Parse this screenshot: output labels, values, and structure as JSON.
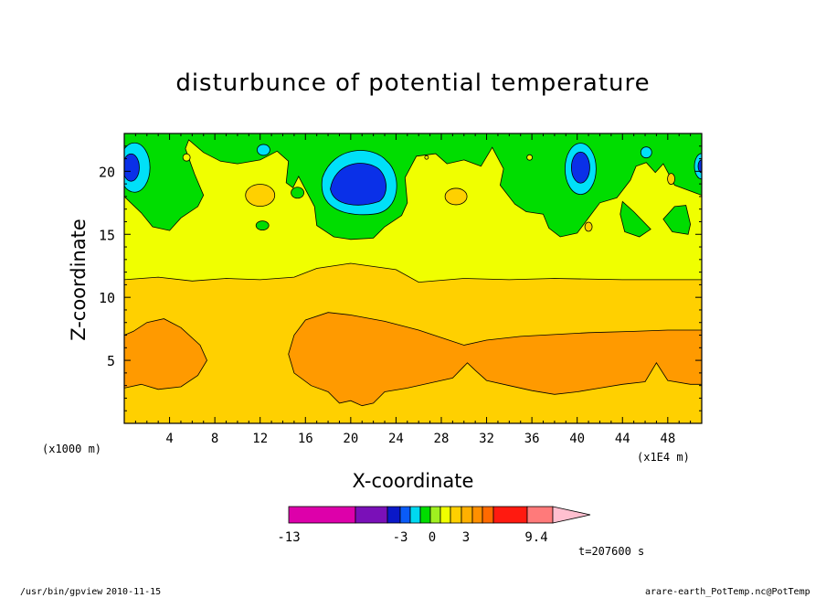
{
  "title": "disturbunce of potential temperature",
  "time_label": "t=207600 s",
  "footer": {
    "left_path": "/usr/bin/gpview",
    "left_date": "2010-11-15",
    "right_source": "arare-earth_PotTemp.nc@PotTemp"
  },
  "chart_data": {
    "type": "heatmap",
    "title": "disturbunce of potential temperature",
    "xlabel": "X-coordinate",
    "ylabel": "Z-coordinate",
    "x_units_left": "(x1000 m)",
    "x_units_right": "(x1E4 m)",
    "xlim": [
      0,
      51
    ],
    "ylim": [
      0,
      23
    ],
    "x_ticks": [
      4,
      8,
      12,
      16,
      20,
      24,
      28,
      32,
      36,
      40,
      44,
      48
    ],
    "x_tick_labels": [
      "4",
      "8",
      "12",
      "16",
      "20",
      "24",
      "28",
      "32",
      "36",
      "40",
      "44",
      "48"
    ],
    "y_ticks": [
      5,
      10,
      15,
      20
    ],
    "y_tick_labels": [
      "5",
      "10",
      "15",
      "20"
    ],
    "grid": false,
    "colorbar": {
      "tick_labels": [
        "-13",
        "-3",
        "0",
        "3",
        "9.4"
      ],
      "colors": [
        "#dd00aa",
        "#7a10b8",
        "#0a18c8",
        "#0a5cf8",
        "#00d8f0",
        "#00dd00",
        "#a0f020",
        "#f0ff00",
        "#ffd000",
        "#ffb000",
        "#ff9000",
        "#ff6a00",
        "#ff1a10",
        "#ff7a7a",
        "#ffc0d0"
      ]
    },
    "regions": [
      {
        "level": "3 to 4 (yellow-orange)",
        "z_range": [
          0.5,
          11.5
        ],
        "x_range": [
          0,
          51
        ]
      },
      {
        "level": "4 to 5 (orange)",
        "z_range": [
          2.5,
          8.5
        ],
        "x_range": [
          0,
          7
        ]
      },
      {
        "level": "4 to 5 (orange)",
        "z_range": [
          1.5,
          8.8
        ],
        "x_range": [
          14.5,
          51
        ]
      },
      {
        "level": "2 to 3 (yellow)",
        "z_range": [
          11.5,
          18
        ],
        "x_range": [
          0,
          51
        ]
      },
      {
        "level": "0 to 2 (green)",
        "z_range": [
          15.5,
          23
        ],
        "x_range": [
          0,
          51
        ]
      },
      {
        "level": "-2 to -1 (cyan)",
        "z_range": [
          17,
          21.5
        ],
        "x_range": [
          17,
          24
        ]
      },
      {
        "level": "-3 to -2 (blue)",
        "z_range": [
          17.5,
          20.5
        ],
        "x_range": [
          18,
          23
        ]
      },
      {
        "level": "-3 to -2 (blue)",
        "z_range": [
          19,
          21.5
        ],
        "x_range": [
          0,
          1.5
        ]
      },
      {
        "level": "-3 to -2 (blue)",
        "z_range": [
          19,
          21.5
        ],
        "x_range": [
          39,
          41
        ]
      }
    ]
  }
}
